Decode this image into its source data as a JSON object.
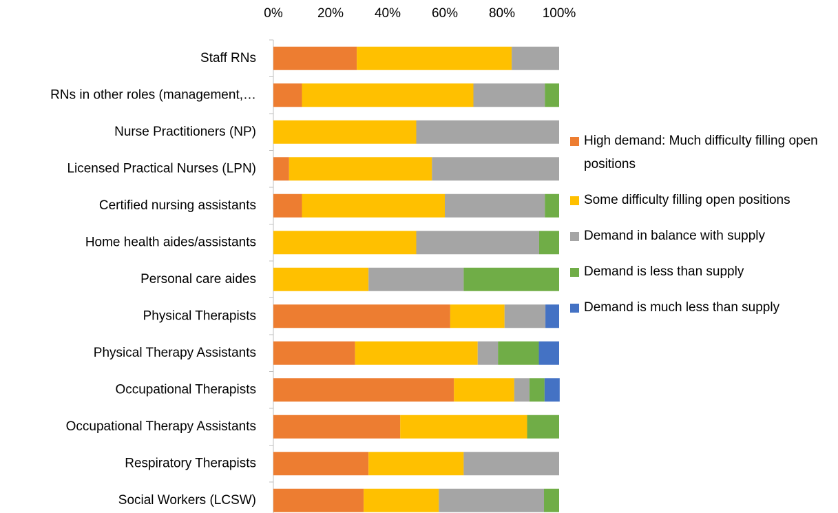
{
  "chart_data": {
    "type": "stacked_barh",
    "categories": [
      "Staff RNs",
      "RNs in other roles (management,…",
      "Nurse Practitioners (NP)",
      "Licensed Practical Nurses (LPN)",
      "Certified nursing assistants",
      "Home health aides/assistants",
      "Personal care aides",
      "Physical Therapists",
      "Physical Therapy Assistants",
      "Occupational Therapists",
      "Occupational Therapy Assistants",
      "Respiratory Therapists",
      "Social Workers (LCSW)"
    ],
    "series": [
      {
        "name": "High demand: Much difficulty filling open positions",
        "color": "#ed7d31",
        "values": [
          29.2,
          10,
          0,
          5.5,
          10,
          0,
          0,
          61.9,
          28.6,
          63.2,
          44.4,
          33.3,
          31.6
        ]
      },
      {
        "name": "Some difficulty filling open positions",
        "color": "#ffc000",
        "values": [
          54.2,
          60,
          50,
          50,
          50,
          50,
          33.3,
          19,
          42.9,
          21.1,
          44.4,
          33.3,
          26.3
        ]
      },
      {
        "name": "Demand in balance with supply",
        "color": "#a5a5a5",
        "values": [
          16.6,
          25,
          50,
          44.5,
          35,
          43,
          33.3,
          14.3,
          7.1,
          5.3,
          0,
          33.4,
          36.8
        ]
      },
      {
        "name": "Demand is less than supply",
        "color": "#70ad47",
        "values": [
          0,
          5,
          0,
          0,
          5,
          7,
          33.4,
          0,
          14.3,
          5.3,
          11.2,
          0,
          5.3
        ]
      },
      {
        "name": "Demand is much less than supply",
        "color": "#4472c4",
        "values": [
          0,
          0,
          0,
          0,
          0,
          0,
          0,
          4.8,
          7.1,
          5.3,
          0,
          0,
          0
        ]
      }
    ],
    "xlim": [
      0,
      100
    ],
    "xticks": [
      {
        "value": 0,
        "label": "0%"
      },
      {
        "value": 20,
        "label": "20%"
      },
      {
        "value": 40,
        "label": "40%"
      },
      {
        "value": 60,
        "label": "60%"
      },
      {
        "value": 80,
        "label": "80%"
      },
      {
        "value": 100,
        "label": "100%"
      }
    ],
    "legend": "right"
  }
}
